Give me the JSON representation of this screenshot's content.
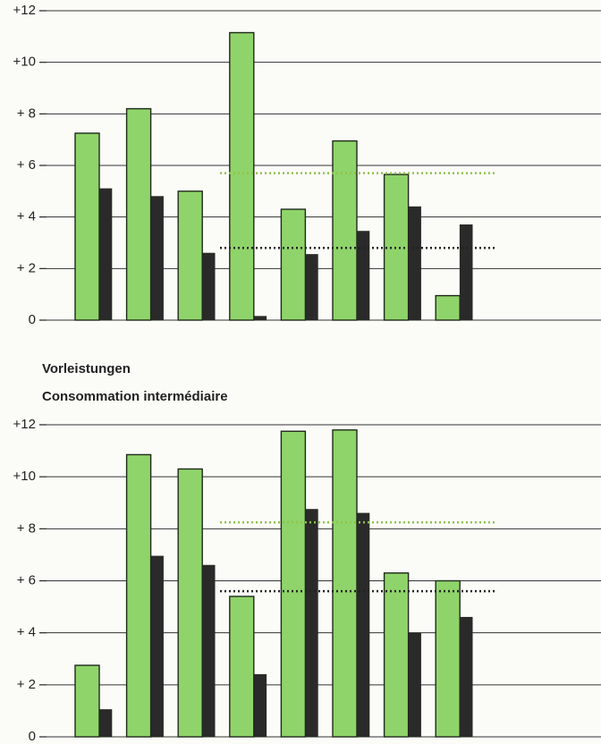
{
  "chart_data": [
    {
      "type": "bar",
      "ylim": [
        0,
        12
      ],
      "yticks": [
        {
          "value": 0,
          "label": "0"
        },
        {
          "value": 2,
          "label": "+ 2"
        },
        {
          "value": 4,
          "label": "+ 4"
        },
        {
          "value": 6,
          "label": "+ 6"
        },
        {
          "value": 8,
          "label": "+ 8"
        },
        {
          "value": 10,
          "label": "+10"
        },
        {
          "value": 12,
          "label": "+12"
        }
      ],
      "grid": true,
      "series": [
        {
          "color": "#8fd46a",
          "values": [
            7.25,
            8.2,
            5.0,
            11.15,
            4.3,
            6.95,
            5.65,
            0.95
          ]
        },
        {
          "color": "#2a2a2a",
          "values": [
            5.1,
            4.8,
            2.6,
            0.15,
            2.55,
            3.45,
            4.4,
            3.7
          ]
        }
      ],
      "reference_lines": [
        {
          "value": 5.7,
          "color": "#8fc24a"
        },
        {
          "value": 2.8,
          "color": "#222222"
        }
      ]
    },
    {
      "type": "bar",
      "title": "Vorleistungen",
      "subtitle": "Consommation intermédiaire",
      "ylim": [
        0,
        12
      ],
      "yticks": [
        {
          "value": 0,
          "label": "0"
        },
        {
          "value": 2,
          "label": "+ 2"
        },
        {
          "value": 4,
          "label": "+ 4"
        },
        {
          "value": 6,
          "label": "+ 6"
        },
        {
          "value": 8,
          "label": "+ 8"
        },
        {
          "value": 10,
          "label": "+10"
        },
        {
          "value": 12,
          "label": "+12"
        }
      ],
      "grid": true,
      "series": [
        {
          "color": "#8fd46a",
          "values": [
            2.75,
            10.85,
            10.3,
            5.4,
            11.75,
            11.8,
            6.3,
            6.0
          ]
        },
        {
          "color": "#2a2a2a",
          "values": [
            1.05,
            6.95,
            6.6,
            2.4,
            8.75,
            8.6,
            4.0,
            4.6
          ]
        }
      ],
      "reference_lines": [
        {
          "value": 8.25,
          "color": "#8fc24a"
        },
        {
          "value": 5.6,
          "color": "#222222"
        }
      ]
    }
  ]
}
